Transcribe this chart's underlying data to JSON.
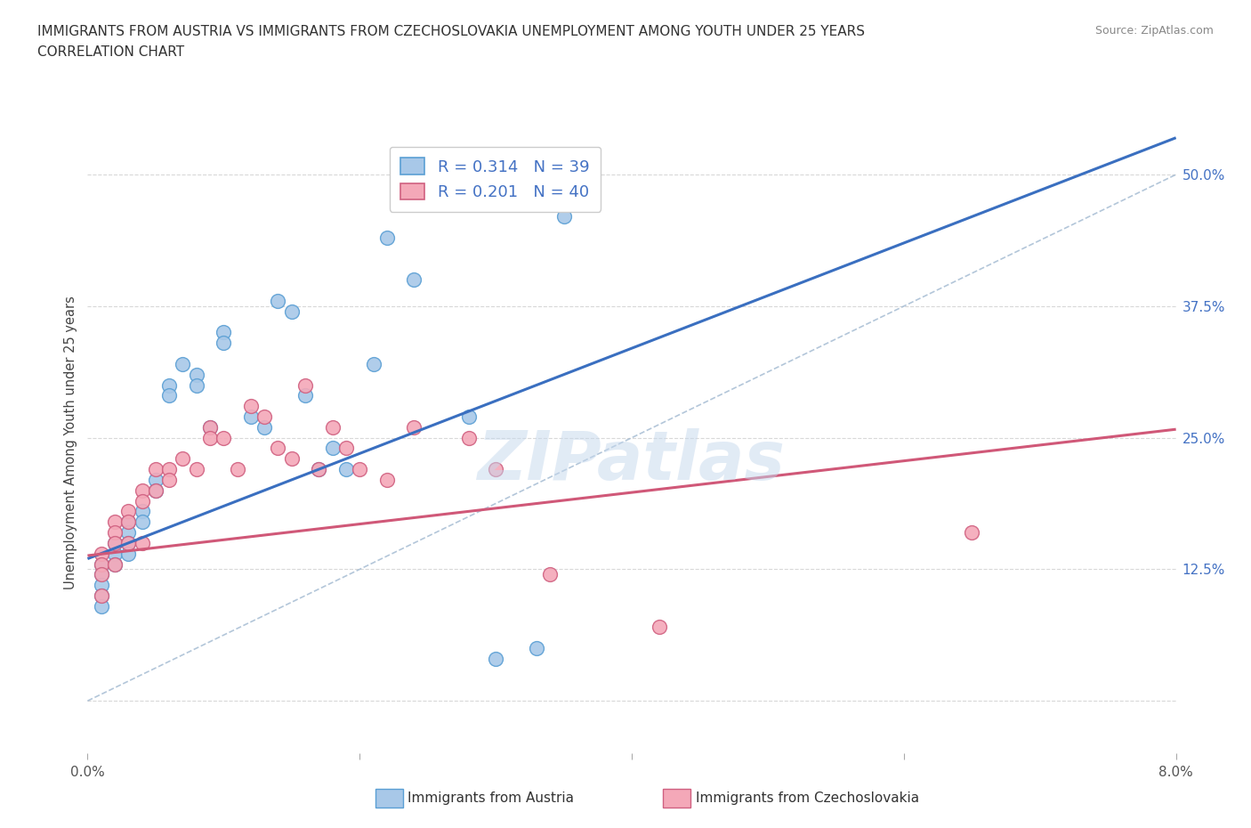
{
  "title_line1": "IMMIGRANTS FROM AUSTRIA VS IMMIGRANTS FROM CZECHOSLOVAKIA UNEMPLOYMENT AMONG YOUTH UNDER 25 YEARS",
  "title_line2": "CORRELATION CHART",
  "source": "Source: ZipAtlas.com",
  "ylabel": "Unemployment Among Youth under 25 years",
  "xlim": [
    0.0,
    0.08
  ],
  "ylim": [
    -0.05,
    0.54
  ],
  "xticks": [
    0.0,
    0.02,
    0.04,
    0.06,
    0.08
  ],
  "xticklabels": [
    "0.0%",
    "",
    "",
    "",
    "8.0%"
  ],
  "yticks_right": [
    0.0,
    0.125,
    0.25,
    0.375,
    0.5
  ],
  "ytick_right_labels": [
    "",
    "12.5%",
    "25.0%",
    "37.5%",
    "50.0%"
  ],
  "austria_color": "#a8c8e8",
  "austria_edge": "#5a9fd4",
  "czech_color": "#f4a8b8",
  "czech_edge": "#d06080",
  "austria_line_color": "#3a6fc0",
  "czech_line_color": "#d05878",
  "dash_color": "#a0b8d0",
  "austria_R": 0.314,
  "austria_N": 39,
  "czech_R": 0.201,
  "czech_N": 40,
  "watermark": "ZIPatlas",
  "austria_x": [
    0.001,
    0.001,
    0.001,
    0.001,
    0.001,
    0.002,
    0.002,
    0.002,
    0.003,
    0.003,
    0.003,
    0.003,
    0.004,
    0.004,
    0.005,
    0.005,
    0.006,
    0.006,
    0.007,
    0.008,
    0.008,
    0.009,
    0.01,
    0.01,
    0.012,
    0.013,
    0.014,
    0.015,
    0.016,
    0.017,
    0.018,
    0.019,
    0.021,
    0.022,
    0.024,
    0.028,
    0.03,
    0.033,
    0.035
  ],
  "austria_y": [
    0.13,
    0.12,
    0.11,
    0.1,
    0.09,
    0.15,
    0.14,
    0.13,
    0.17,
    0.16,
    0.15,
    0.14,
    0.18,
    0.17,
    0.21,
    0.2,
    0.3,
    0.29,
    0.32,
    0.31,
    0.3,
    0.26,
    0.35,
    0.34,
    0.27,
    0.26,
    0.38,
    0.37,
    0.29,
    0.22,
    0.24,
    0.22,
    0.32,
    0.44,
    0.4,
    0.27,
    0.04,
    0.05,
    0.46
  ],
  "czech_x": [
    0.001,
    0.001,
    0.001,
    0.001,
    0.002,
    0.002,
    0.002,
    0.002,
    0.003,
    0.003,
    0.003,
    0.004,
    0.004,
    0.004,
    0.005,
    0.005,
    0.006,
    0.006,
    0.007,
    0.008,
    0.009,
    0.009,
    0.01,
    0.011,
    0.012,
    0.013,
    0.014,
    0.015,
    0.016,
    0.017,
    0.018,
    0.019,
    0.02,
    0.022,
    0.024,
    0.028,
    0.03,
    0.034,
    0.042,
    0.065
  ],
  "czech_y": [
    0.14,
    0.13,
    0.12,
    0.1,
    0.17,
    0.16,
    0.15,
    0.13,
    0.18,
    0.17,
    0.15,
    0.2,
    0.19,
    0.15,
    0.22,
    0.2,
    0.22,
    0.21,
    0.23,
    0.22,
    0.26,
    0.25,
    0.25,
    0.22,
    0.28,
    0.27,
    0.24,
    0.23,
    0.3,
    0.22,
    0.26,
    0.24,
    0.22,
    0.21,
    0.26,
    0.25,
    0.22,
    0.12,
    0.07,
    0.16
  ],
  "background_color": "#ffffff",
  "grid_color": "#d8d8d8"
}
